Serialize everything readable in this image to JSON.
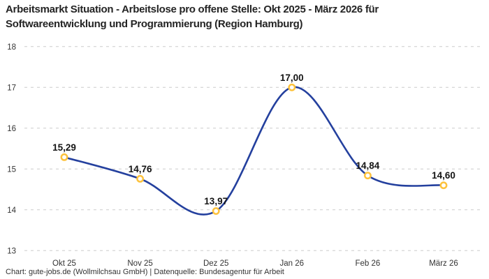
{
  "chart_data": {
    "type": "line",
    "title": "Arbeitsmarkt Situation - Arbeitslose pro offene Stelle: Okt 2025 - März 2026 für Softwareentwicklung und Programmierung (Region Hamburg)",
    "categories": [
      "Okt 25",
      "Nov 25",
      "Dez 25",
      "Jan 26",
      "Feb 26",
      "März 26"
    ],
    "values": [
      15.29,
      14.76,
      13.97,
      17.0,
      14.84,
      14.6
    ],
    "value_labels": [
      "15,29",
      "14,76",
      "13,97",
      "17,00",
      "14,84",
      "14,60"
    ],
    "ylim": [
      13,
      18
    ],
    "yticks": [
      13,
      14,
      15,
      16,
      17,
      18
    ],
    "xlabel": "",
    "ylabel": "",
    "grid": "dashed-horizontal",
    "legend": "none",
    "curve": "smooth",
    "colors": {
      "line": "#24409e",
      "marker_ring": "#fdc23c",
      "marker_fill": "#ffffff",
      "gridline": "#cccccc",
      "tick_text": "#333333",
      "value_label_text": "#141414",
      "title_text": "#242424"
    },
    "attribution": "Chart: gute-jobs.de (Wollmilchsau GmbH) | Datenquelle: Bundesagentur für Arbeit"
  }
}
